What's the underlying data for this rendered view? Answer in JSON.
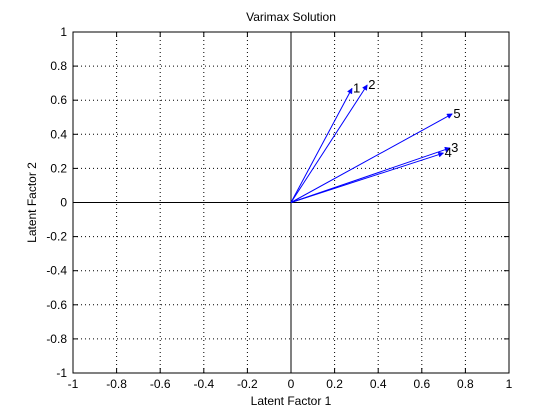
{
  "chart_data": {
    "type": "line",
    "title": "Varimax Solution",
    "xlabel": "Latent Factor 1",
    "ylabel": "Latent Factor 2",
    "xlim": [
      -1,
      1
    ],
    "ylim": [
      -1,
      1
    ],
    "xticks": [
      "-1",
      "-0.8",
      "-0.6",
      "-0.4",
      "-0.2",
      "0",
      "0.2",
      "0.4",
      "0.6",
      "0.8",
      "1"
    ],
    "yticks": [
      "-1",
      "-0.8",
      "-0.6",
      "-0.4",
      "-0.2",
      "0",
      "0.2",
      "0.4",
      "0.6",
      "0.8",
      "1"
    ],
    "grid": true,
    "grid_style": "dotted",
    "vector_color": "#0000ff",
    "axis_color": "#000000",
    "origin": [
      0,
      0
    ],
    "vectors": [
      {
        "label": "1",
        "x": 0.28,
        "y": 0.67
      },
      {
        "label": "2",
        "x": 0.35,
        "y": 0.69
      },
      {
        "label": "3",
        "x": 0.73,
        "y": 0.32
      },
      {
        "label": "4",
        "x": 0.7,
        "y": 0.29
      },
      {
        "label": "5",
        "x": 0.74,
        "y": 0.52
      }
    ]
  }
}
